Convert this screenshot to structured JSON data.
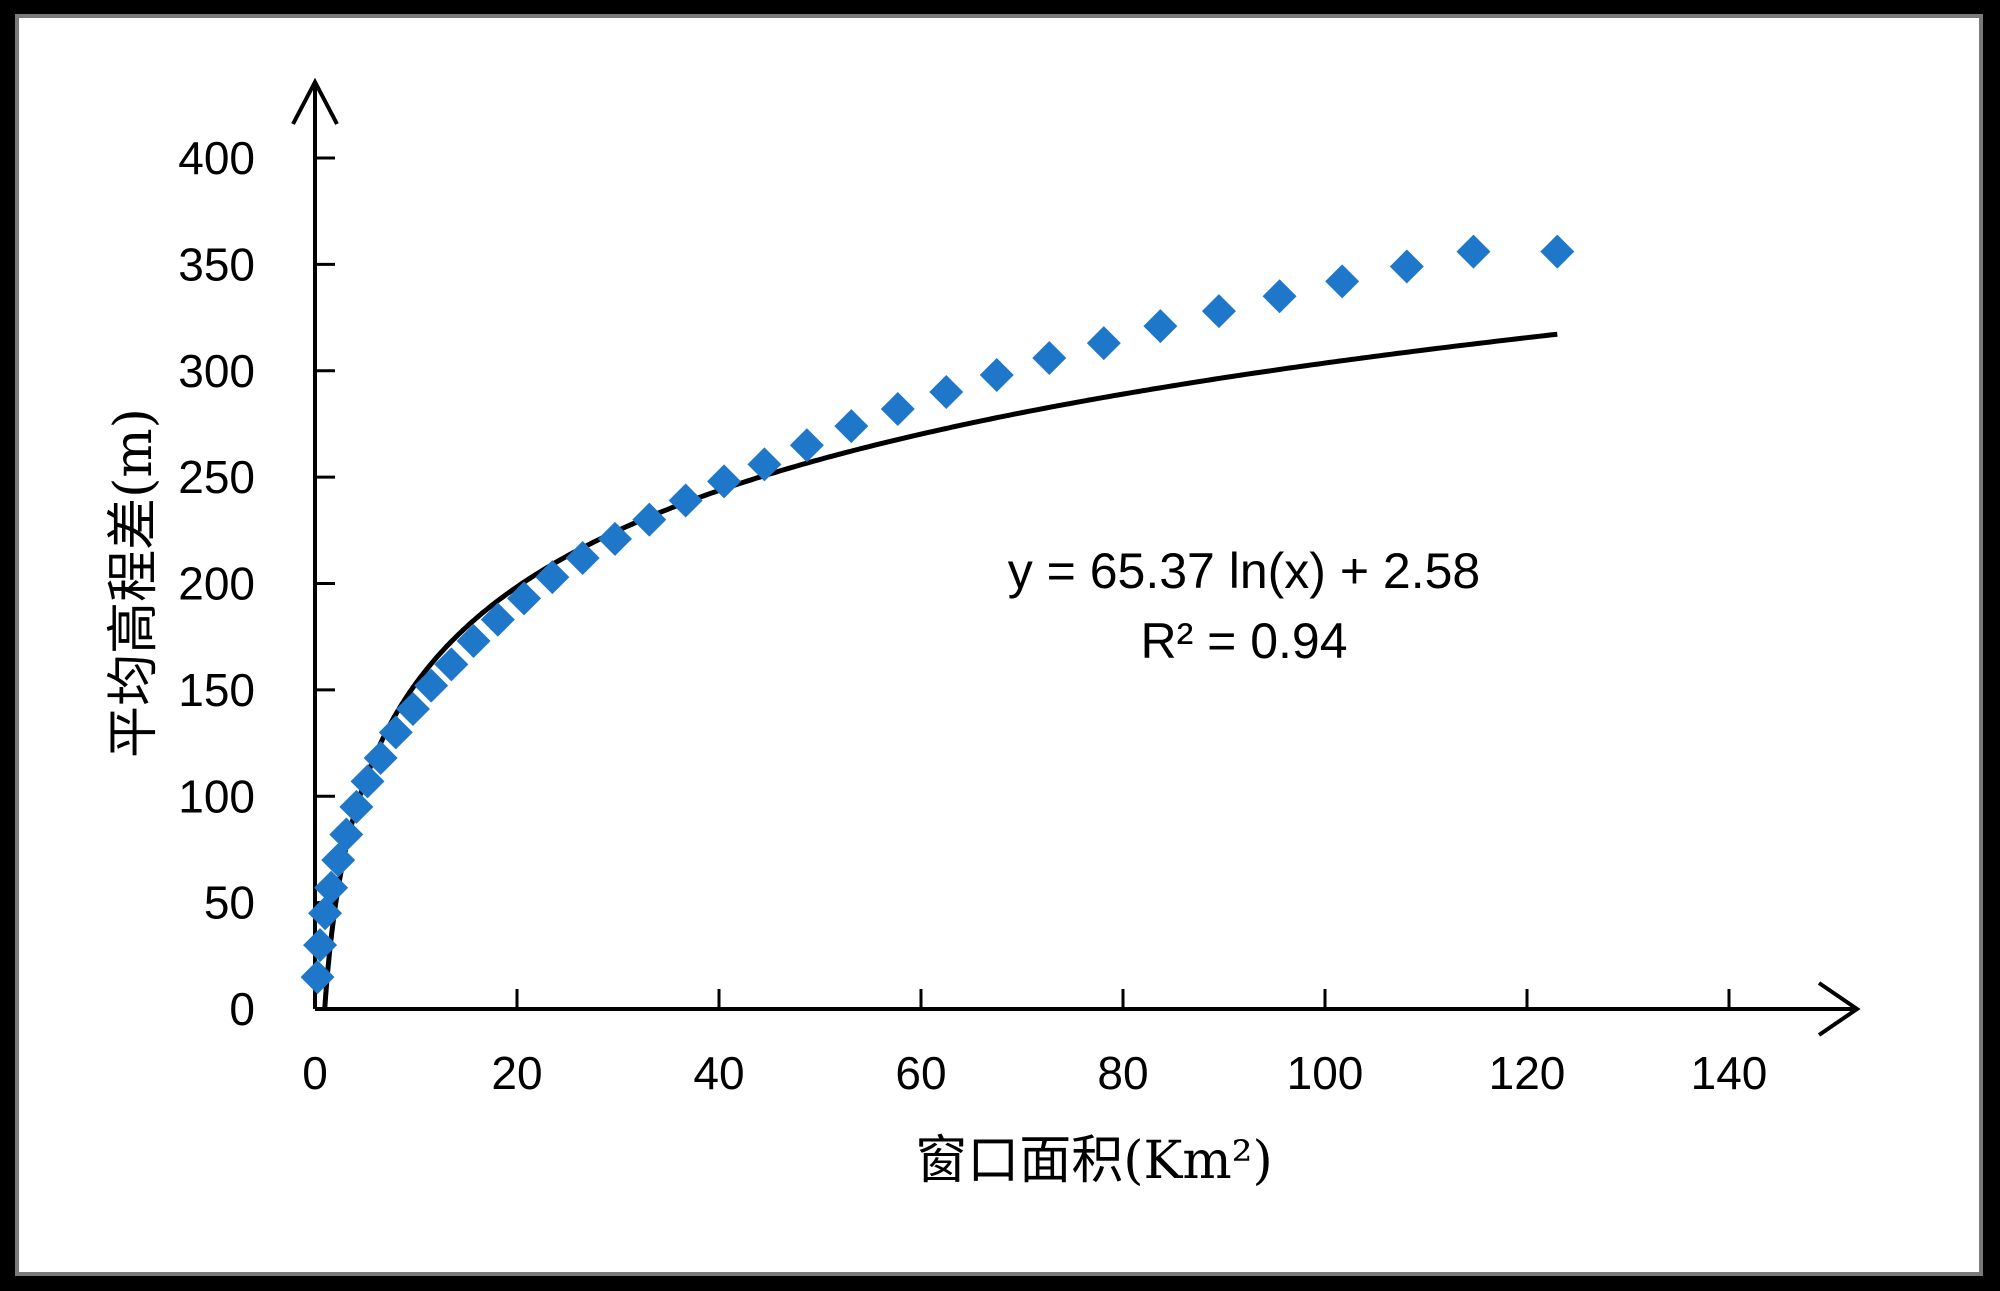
{
  "chart_data": {
    "type": "scatter",
    "title": "",
    "xlabel": "窗口面积(Km²)",
    "ylabel": "平均高程差(m)",
    "xlim": [
      0,
      140
    ],
    "ylim": [
      0,
      400
    ],
    "x_ticks": [
      "0",
      "20",
      "40",
      "60",
      "80",
      "100",
      "120",
      "140"
    ],
    "y_ticks": [
      "0",
      "50",
      "100",
      "150",
      "200",
      "250",
      "300",
      "350",
      "400"
    ],
    "grid": false,
    "legend": "none",
    "marker_color": "#1f77c9",
    "trend_color": "#000000",
    "series": [
      {
        "marker": "diamond",
        "x": [
          0.25,
          0.5,
          1,
          1.6,
          2.3,
          3.1,
          4.1,
          5.2,
          6.5,
          8,
          9.7,
          11.5,
          13.5,
          15.7,
          18.1,
          20.7,
          23.5,
          26.5,
          29.7,
          33.1,
          36.7,
          40.5,
          44.5,
          48.7,
          53.1,
          57.7,
          62.5,
          67.5,
          72.7,
          78.1,
          83.7,
          89.5,
          95.5,
          101.7,
          108.1,
          114.7,
          123
        ],
        "y": [
          15,
          30,
          45,
          57,
          70,
          82,
          95,
          107,
          118,
          130,
          141,
          152,
          162,
          173,
          183,
          193,
          203,
          212,
          221,
          230,
          239,
          248,
          256,
          265,
          274,
          282,
          290,
          298,
          306,
          313,
          321,
          328,
          335,
          342,
          349,
          356,
          356
        ]
      }
    ],
    "trendline": {
      "type": "log",
      "a": 65.37,
      "b": 2.58,
      "equation": "y = 65.37 ln(x) + 2.58",
      "r2": "R² = 0.94"
    }
  }
}
